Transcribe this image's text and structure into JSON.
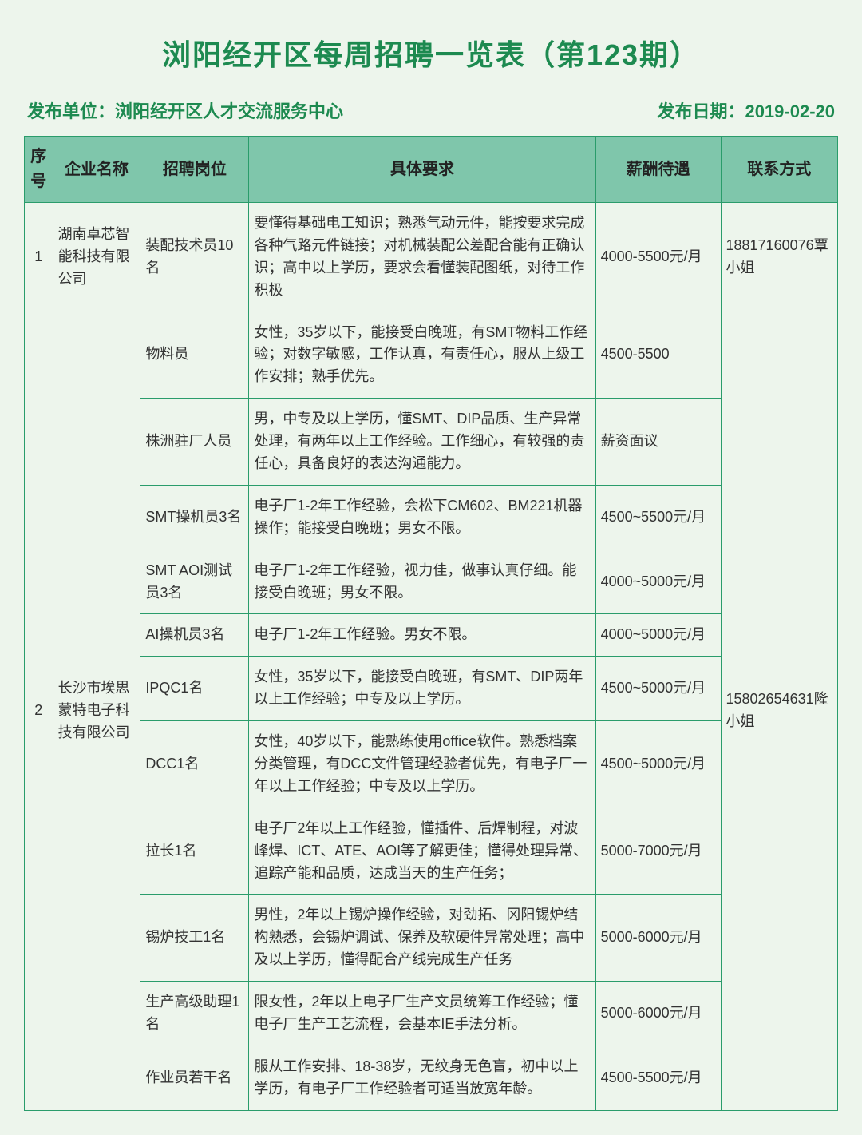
{
  "title": "浏阳经开区每周招聘一览表（第123期）",
  "publisher_label": "发布单位：浏阳经开区人才交流服务中心",
  "publish_date_label": "发布日期：2019-02-20",
  "headers": {
    "seq": "序号",
    "company": "企业名称",
    "position": "招聘岗位",
    "requirement": "具体要求",
    "salary": "薪酬待遇",
    "contact": "联系方式"
  },
  "row1": {
    "seq": "1",
    "company": "湖南卓芯智能科技有限公司",
    "position": "装配技术员10名",
    "requirement": "要懂得基础电工知识；熟悉气动元件，能按要求完成各种气路元件链接；对机械装配公差配合能有正确认识；高中以上学历，要求会看懂装配图纸，对待工作积极",
    "salary": "4000-5500元/月",
    "contact": "18817160076覃小姐"
  },
  "row2": {
    "seq": "2",
    "company": "长沙市埃思蒙特电子科技有限公司",
    "contact": "15802654631隆小姐",
    "p1": {
      "position": "物料员",
      "requirement": "女性，35岁以下，能接受白晚班，有SMT物料工作经验；对数字敏感，工作认真，有责任心，服从上级工作安排；熟手优先。",
      "salary": "4500-5500"
    },
    "p2": {
      "position": "株洲驻厂人员",
      "requirement": "男，中专及以上学历，懂SMT、DIP品质、生产异常处理，有两年以上工作经验。工作细心，有较强的责任心，具备良好的表达沟通能力。",
      "salary": "薪资面议"
    },
    "p3": {
      "position": "SMT操机员3名",
      "requirement": "电子厂1-2年工作经验，会松下CM602、BM221机器操作；能接受白晚班；男女不限。",
      "salary": "4500~5500元/月"
    },
    "p4": {
      "position": "SMT AOI测试员3名",
      "requirement": "电子厂1-2年工作经验，视力佳，做事认真仔细。能接受白晚班；男女不限。",
      "salary": "4000~5000元/月"
    },
    "p5": {
      "position": "AI操机员3名",
      "requirement": "电子厂1-2年工作经验。男女不限。",
      "salary": "4000~5000元/月"
    },
    "p6": {
      "position": "IPQC1名",
      "requirement": "女性，35岁以下，能接受白晚班，有SMT、DIP两年以上工作经验；中专及以上学历。",
      "salary": "4500~5000元/月"
    },
    "p7": {
      "position": "DCC1名",
      "requirement": "女性，40岁以下，能熟练使用office软件。熟悉档案分类管理，有DCC文件管理经验者优先，有电子厂一年以上工作经验；中专及以上学历。",
      "salary": "4500~5000元/月"
    },
    "p8": {
      "position": "拉长1名",
      "requirement": "电子厂2年以上工作经验，懂插件、后焊制程，对波峰焊、ICT、ATE、AOI等了解更佳；懂得处理异常、追踪产能和品质，达成当天的生产任务；",
      "salary": "5000-7000元/月"
    },
    "p9": {
      "position": "锡炉技工1名",
      "requirement": "男性，2年以上锡炉操作经验，对劲拓、冈阳锡炉结构熟悉，会锡炉调试、保养及软硬件异常处理；高中及以上学历，懂得配合产线完成生产任务",
      "salary": "5000-6000元/月"
    },
    "p10": {
      "position": "生产高级助理1名",
      "requirement": "限女性，2年以上电子厂生产文员统筹工作经验；懂电子厂生产工艺流程，会基本IE手法分析。",
      "salary": "5000-6000元/月"
    },
    "p11": {
      "position": "作业员若干名",
      "requirement": "服从工作安排、18-38岁，无纹身无色盲，初中以上学历，有电子厂工作经验者可适当放宽年龄。",
      "salary": "4500-5500元/月"
    }
  }
}
